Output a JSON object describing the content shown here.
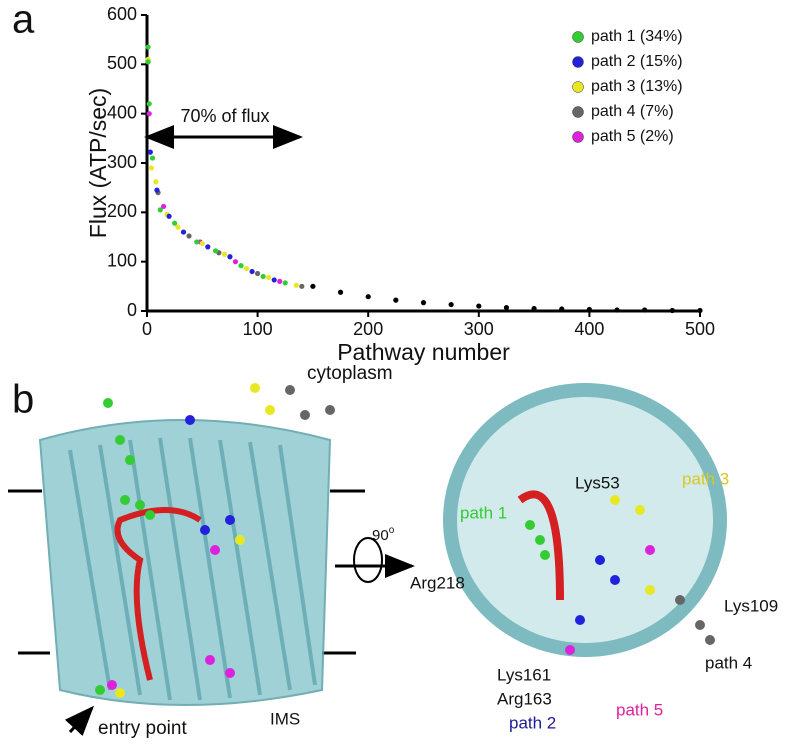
{
  "panel_labels": [
    "a",
    "b"
  ],
  "chart_data": {
    "type": "scatter",
    "xlabel": "Pathway number",
    "ylabel": "Flux (ATP/sec)",
    "xlim": [
      0,
      500
    ],
    "xticks": [
      0,
      100,
      200,
      300,
      400,
      500
    ],
    "ylim": [
      0,
      600
    ],
    "yticks": [
      0,
      100,
      200,
      300,
      400,
      500,
      600
    ],
    "legend": "top-right",
    "annotations": [
      "70% of flux"
    ],
    "series": [
      {
        "name": "path 1 (34%)",
        "color": "#33cc33",
        "x": [
          1,
          1,
          2,
          5,
          12,
          25,
          45,
          62,
          85,
          105,
          125
        ],
        "values": [
          535,
          505,
          420,
          310,
          205,
          178,
          140,
          122,
          92,
          70,
          57
        ]
      },
      {
        "name": "path 2 (15%)",
        "color": "#2222dd",
        "x": [
          3,
          9,
          20,
          33,
          55,
          75,
          95,
          115
        ],
        "values": [
          322,
          245,
          192,
          160,
          130,
          110,
          80,
          63
        ]
      },
      {
        "name": "path 3 (13%)",
        "color": "#e8e822",
        "x": [
          1,
          4,
          8,
          18,
          28,
          50,
          70,
          90,
          110,
          135
        ],
        "values": [
          510,
          290,
          262,
          196,
          170,
          137,
          115,
          86,
          68,
          52
        ]
      },
      {
        "name": "path 4 (7%)",
        "color": "#666666",
        "x": [
          10,
          38,
          65,
          100,
          140
        ],
        "values": [
          240,
          152,
          118,
          76,
          50
        ]
      },
      {
        "name": "path 5 (2%)",
        "color": "#dd22dd",
        "x": [
          2,
          15,
          48,
          80,
          120
        ],
        "values": [
          400,
          212,
          140,
          100,
          60
        ]
      },
      {
        "color": "#000000",
        "x": [
          150,
          175,
          200,
          225,
          250,
          275,
          300,
          325,
          350,
          375,
          400,
          425,
          450,
          475,
          500
        ],
        "values": [
          50,
          38,
          29,
          22,
          17,
          13,
          10,
          7,
          5,
          4,
          3,
          2,
          2,
          1,
          1
        ]
      }
    ]
  },
  "panel_b": {
    "left": {
      "cytoplasm": "cytoplasm",
      "entry_point": "entry point",
      "ims": "IMS"
    },
    "rotation": {
      "angle": "90",
      "unit": "o"
    },
    "right": {
      "path1": "path 1",
      "lys53": "Lys53",
      "path3": "path 3",
      "arg218": "Arg218",
      "lys109": "Lys109",
      "path4": "path 4",
      "lys161": "Lys161",
      "arg163": "Arg163",
      "path2": "path 2",
      "path5": "path 5"
    }
  }
}
